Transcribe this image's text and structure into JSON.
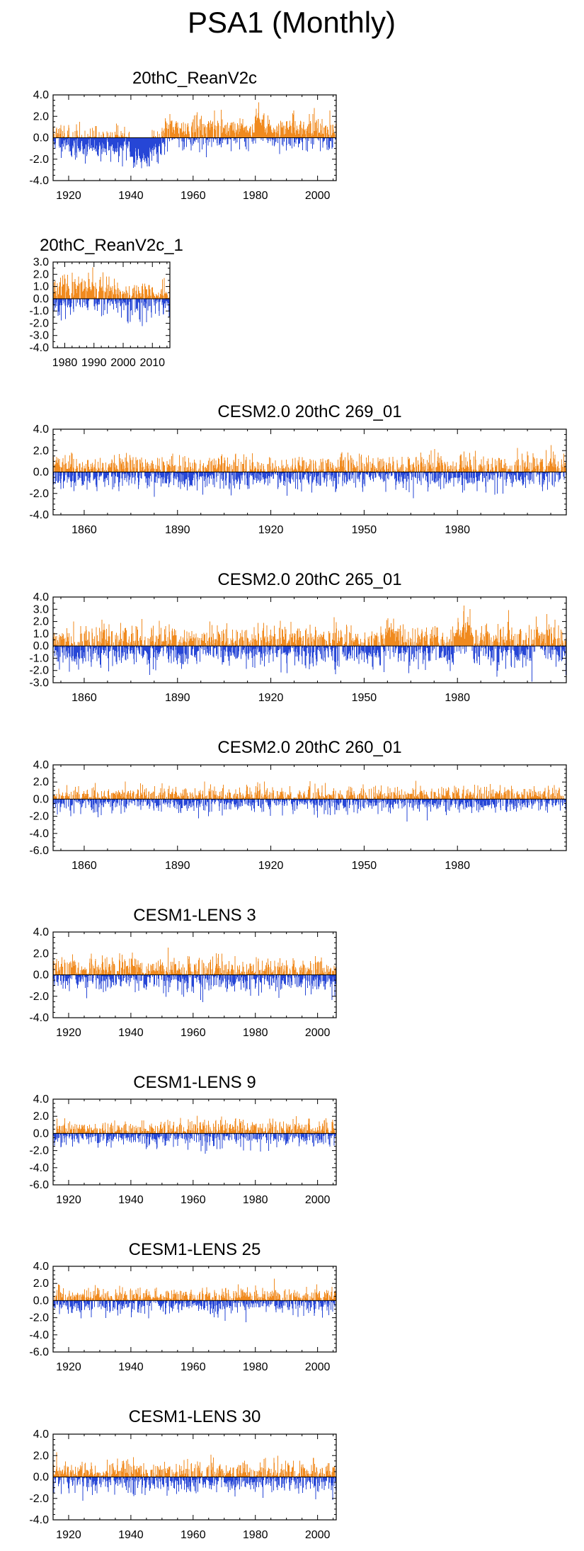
{
  "title": "PSA1 (Monthly)",
  "colors": {
    "positive": "#f08a1e",
    "negative": "#2646d6",
    "axis": "#000000"
  },
  "chart_data": [
    {
      "type": "bar",
      "title": "20thC_ReanV2c",
      "x_range": [
        1915,
        2006
      ],
      "ylim": [
        -4.0,
        4.0
      ],
      "x_ticks": [
        1920,
        1940,
        1960,
        1980,
        2000
      ],
      "y_ticks": [
        "4.0",
        "2.0",
        "0.0",
        "-2.0",
        "-4.0"
      ],
      "y_tick_values": [
        4,
        2,
        0,
        -2,
        -4
      ],
      "amplitude": 1.0,
      "seed": 11,
      "episodes": [
        {
          "from": 1920,
          "to": 1949,
          "bias": -0.55
        },
        {
          "from": 1940,
          "to": 1945,
          "bias": -0.9
        },
        {
          "from": 1950,
          "to": 2006,
          "bias": 0.45
        },
        {
          "from": 1980,
          "to": 1982,
          "bias": 0.9
        }
      ]
    },
    {
      "type": "bar",
      "title": "20thC_ReanV2c_1",
      "x_range": [
        1976,
        2016
      ],
      "ylim": [
        -4.0,
        3.0
      ],
      "x_ticks": [
        1980,
        1990,
        2000,
        2010
      ],
      "y_ticks": [
        "3.0",
        "2.0",
        "1.0",
        "0.0",
        "-1.0",
        "-2.0",
        "-3.0",
        "-4.0"
      ],
      "y_tick_values": [
        3,
        2,
        1,
        0,
        -1,
        -2,
        -3,
        -4
      ],
      "amplitude": 1.0,
      "seed": 23,
      "episodes": [
        {
          "from": 1976,
          "to": 1994,
          "bias": 0.25
        }
      ]
    },
    {
      "type": "bar",
      "title": "CESM2.0 20thC 269_01",
      "x_range": [
        1850,
        2015
      ],
      "ylim": [
        -4.0,
        4.0
      ],
      "x_ticks": [
        1860,
        1890,
        1920,
        1950,
        1980
      ],
      "y_ticks": [
        "4.0",
        "2.0",
        "0.0",
        "-2.0",
        "-4.0"
      ],
      "y_tick_values": [
        4,
        2,
        0,
        -2,
        -4
      ],
      "amplitude": 1.0,
      "seed": 37,
      "episodes": []
    },
    {
      "type": "bar",
      "title": "CESM2.0 20thC 265_01",
      "x_range": [
        1850,
        2015
      ],
      "ylim": [
        -3.0,
        4.0
      ],
      "x_ticks": [
        1860,
        1890,
        1920,
        1950,
        1980
      ],
      "y_ticks": [
        "4.0",
        "3.0",
        "2.0",
        "1.0",
        "0.0",
        "-1.0",
        "-2.0",
        "-3.0"
      ],
      "y_tick_values": [
        4,
        3,
        2,
        1,
        0,
        -1,
        -2,
        -3
      ],
      "amplitude": 1.1,
      "seed": 41,
      "episodes": [
        {
          "from": 1957,
          "to": 1960,
          "bias": 0.8
        },
        {
          "from": 1980,
          "to": 1984,
          "bias": 1.1
        }
      ]
    },
    {
      "type": "bar",
      "title": "CESM2.0 20thC 260_01",
      "x_range": [
        1850,
        2015
      ],
      "ylim": [
        -6.0,
        4.0
      ],
      "x_ticks": [
        1860,
        1890,
        1920,
        1950,
        1980
      ],
      "y_ticks": [
        "4.0",
        "2.0",
        "0.0",
        "-2.0",
        "-4.0",
        "-6.0"
      ],
      "y_tick_values": [
        4,
        2,
        0,
        -2,
        -4,
        -6
      ],
      "amplitude": 1.0,
      "seed": 53,
      "episodes": []
    },
    {
      "type": "bar",
      "title": "CESM1-LENS 3",
      "x_range": [
        1915,
        2006
      ],
      "ylim": [
        -4.0,
        4.0
      ],
      "x_ticks": [
        1920,
        1940,
        1960,
        1980,
        2000
      ],
      "y_ticks": [
        "4.0",
        "2.0",
        "0.0",
        "-2.0",
        "-4.0"
      ],
      "y_tick_values": [
        4,
        2,
        0,
        -2,
        -4
      ],
      "amplitude": 1.0,
      "seed": 67,
      "episodes": []
    },
    {
      "type": "bar",
      "title": "CESM1-LENS 9",
      "x_range": [
        1915,
        2006
      ],
      "ylim": [
        -6.0,
        4.0
      ],
      "x_ticks": [
        1920,
        1940,
        1960,
        1980,
        2000
      ],
      "y_ticks": [
        "4.0",
        "2.0",
        "0.0",
        "-2.0",
        "-4.0",
        "-6.0"
      ],
      "y_tick_values": [
        4,
        2,
        0,
        -2,
        -4,
        -6
      ],
      "amplitude": 1.0,
      "seed": 71,
      "episodes": []
    },
    {
      "type": "bar",
      "title": "CESM1-LENS 25",
      "x_range": [
        1915,
        2006
      ],
      "ylim": [
        -6.0,
        4.0
      ],
      "x_ticks": [
        1920,
        1940,
        1960,
        1980,
        2000
      ],
      "y_ticks": [
        "4.0",
        "2.0",
        "0.0",
        "-2.0",
        "-4.0",
        "-6.0"
      ],
      "y_tick_values": [
        4,
        2,
        0,
        -2,
        -4,
        -6
      ],
      "amplitude": 1.0,
      "seed": 83,
      "episodes": []
    },
    {
      "type": "bar",
      "title": "CESM1-LENS 30",
      "x_range": [
        1915,
        2006
      ],
      "ylim": [
        -4.0,
        4.0
      ],
      "x_ticks": [
        1920,
        1940,
        1960,
        1980,
        2000
      ],
      "y_ticks": [
        "4.0",
        "2.0",
        "0.0",
        "-2.0",
        "-4.0"
      ],
      "y_tick_values": [
        4,
        2,
        0,
        -2,
        -4
      ],
      "amplitude": 1.0,
      "seed": 97,
      "episodes": []
    }
  ]
}
